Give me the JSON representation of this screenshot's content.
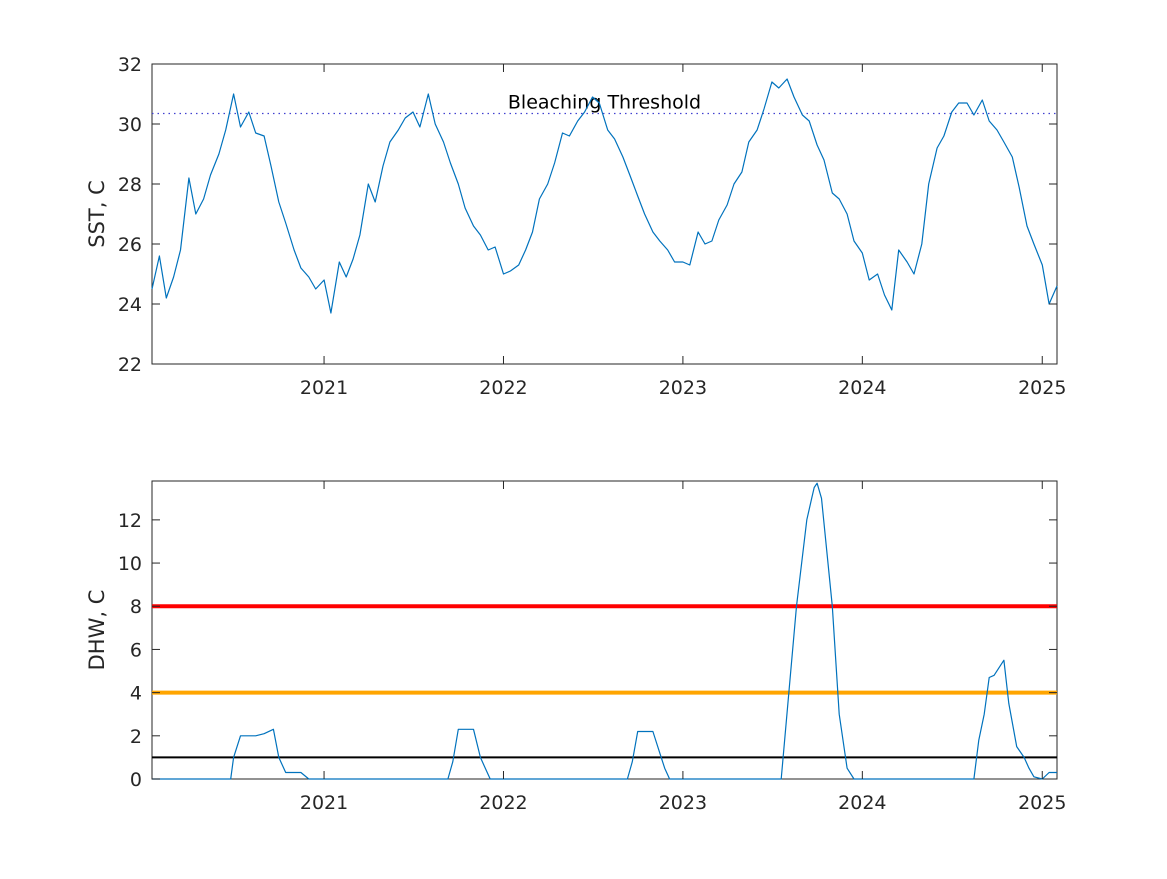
{
  "chart_data": [
    {
      "type": "line",
      "xlabel": "",
      "ylabel": "SST, C",
      "ylim": [
        22,
        32
      ],
      "xlim": [
        "2020-01-17",
        "2025-01-31"
      ],
      "yticks": [
        "22",
        "24",
        "26",
        "28",
        "30",
        "32"
      ],
      "xticks": [
        {
          "date": "2021-01-01",
          "label": "2021"
        },
        {
          "date": "2022-01-01",
          "label": "2022"
        },
        {
          "date": "2023-01-01",
          "label": "2023"
        },
        {
          "date": "2024-01-01",
          "label": "2024"
        },
        {
          "date": "2025-01-01",
          "label": "2025"
        }
      ],
      "grid": false,
      "series": [
        {
          "color": "#0072BD",
          "x": [
            "2020-01-17",
            "2020-02-01",
            "2020-02-15",
            "2020-03-01",
            "2020-03-15",
            "2020-04-01",
            "2020-04-15",
            "2020-05-01",
            "2020-05-15",
            "2020-06-01",
            "2020-06-15",
            "2020-07-01",
            "2020-07-15",
            "2020-08-01",
            "2020-08-15",
            "2020-09-01",
            "2020-09-15",
            "2020-10-01",
            "2020-10-15",
            "2020-11-01",
            "2020-11-15",
            "2020-12-01",
            "2020-12-15",
            "2021-01-01",
            "2021-01-15",
            "2021-02-01",
            "2021-02-15",
            "2021-03-01",
            "2021-03-15",
            "2021-04-01",
            "2021-04-15",
            "2021-05-01",
            "2021-05-15",
            "2021-06-01",
            "2021-06-15",
            "2021-07-01",
            "2021-07-15",
            "2021-08-01",
            "2021-08-15",
            "2021-09-01",
            "2021-09-15",
            "2021-10-01",
            "2021-10-15",
            "2021-11-01",
            "2021-11-15",
            "2021-12-01",
            "2021-12-15",
            "2022-01-01",
            "2022-01-15",
            "2022-02-01",
            "2022-02-15",
            "2022-03-01",
            "2022-03-15",
            "2022-04-01",
            "2022-04-15",
            "2022-05-01",
            "2022-05-15",
            "2022-06-01",
            "2022-06-15",
            "2022-07-01",
            "2022-07-15",
            "2022-08-01",
            "2022-08-15",
            "2022-09-01",
            "2022-09-15",
            "2022-10-01",
            "2022-10-15",
            "2022-11-01",
            "2022-11-15",
            "2022-12-01",
            "2022-12-15",
            "2023-01-01",
            "2023-01-15",
            "2023-02-01",
            "2023-02-15",
            "2023-03-01",
            "2023-03-15",
            "2023-04-01",
            "2023-04-15",
            "2023-05-01",
            "2023-05-15",
            "2023-06-01",
            "2023-06-15",
            "2023-07-01",
            "2023-07-15",
            "2023-08-01",
            "2023-08-15",
            "2023-09-01",
            "2023-09-15",
            "2023-10-01",
            "2023-10-15",
            "2023-11-01",
            "2023-11-15",
            "2023-12-01",
            "2023-12-15",
            "2024-01-01",
            "2024-01-15",
            "2024-02-01",
            "2024-02-15",
            "2024-03-01",
            "2024-03-15",
            "2024-04-01",
            "2024-04-15",
            "2024-05-01",
            "2024-05-15",
            "2024-06-01",
            "2024-06-15",
            "2024-07-01",
            "2024-07-15",
            "2024-08-01",
            "2024-08-15",
            "2024-09-01",
            "2024-09-15",
            "2024-10-01",
            "2024-10-15",
            "2024-11-01",
            "2024-11-15",
            "2024-12-01",
            "2024-12-15",
            "2025-01-01",
            "2025-01-15",
            "2025-01-31"
          ],
          "y": [
            24.5,
            25.6,
            24.2,
            24.9,
            25.8,
            28.2,
            27.0,
            27.5,
            28.3,
            29.0,
            29.8,
            31.0,
            29.9,
            30.4,
            29.7,
            29.6,
            28.6,
            27.4,
            26.7,
            25.8,
            25.2,
            24.9,
            24.5,
            24.8,
            23.7,
            25.4,
            24.9,
            25.5,
            26.3,
            28.0,
            27.4,
            28.6,
            29.4,
            29.8,
            30.2,
            30.4,
            29.9,
            31.0,
            30.0,
            29.4,
            28.7,
            28.0,
            27.2,
            26.6,
            26.3,
            25.8,
            25.9,
            25.0,
            25.1,
            25.3,
            25.8,
            26.4,
            27.5,
            28.0,
            28.7,
            29.7,
            29.6,
            30.1,
            30.4,
            30.9,
            30.7,
            29.8,
            29.5,
            28.9,
            28.3,
            27.6,
            27.0,
            26.4,
            26.1,
            25.8,
            25.4,
            25.4,
            25.3,
            26.4,
            26.0,
            26.1,
            26.8,
            27.3,
            28.0,
            28.4,
            29.4,
            29.8,
            30.5,
            31.4,
            31.2,
            31.5,
            30.9,
            30.3,
            30.1,
            29.3,
            28.8,
            27.7,
            27.5,
            27.0,
            26.1,
            25.7,
            24.8,
            25.0,
            24.3,
            23.8,
            25.8,
            25.4,
            25.0,
            26.0,
            28.0,
            29.2,
            29.6,
            30.4,
            30.7,
            30.7,
            30.3,
            30.8,
            30.1,
            29.8,
            29.4,
            28.9,
            27.9,
            26.6,
            26.0,
            25.3,
            24.0,
            24.6
          ]
        }
      ],
      "annotations": [
        {
          "text": "Bleaching Threshold",
          "y": 30.35,
          "line_style": "dotted",
          "line_color": "#4040D0"
        }
      ]
    },
    {
      "type": "line",
      "xlabel": "",
      "ylabel": "DHW, C",
      "ylim": [
        0,
        13.8
      ],
      "xlim": [
        "2020-01-17",
        "2025-01-31"
      ],
      "yticks": [
        "0",
        "2",
        "4",
        "6",
        "8",
        "10",
        "12"
      ],
      "xticks": [
        {
          "date": "2021-01-01",
          "label": "2021"
        },
        {
          "date": "2022-01-01",
          "label": "2022"
        },
        {
          "date": "2023-01-01",
          "label": "2023"
        },
        {
          "date": "2024-01-01",
          "label": "2024"
        },
        {
          "date": "2025-01-01",
          "label": "2025"
        }
      ],
      "grid": false,
      "series": [
        {
          "color": "#0072BD",
          "x": [
            "2020-01-17",
            "2020-06-25",
            "2020-07-01",
            "2020-07-15",
            "2020-08-15",
            "2020-09-01",
            "2020-09-20",
            "2020-10-01",
            "2020-10-15",
            "2020-11-15",
            "2020-12-01",
            "2021-09-10",
            "2021-09-20",
            "2021-10-01",
            "2021-11-01",
            "2021-11-15",
            "2021-11-25",
            "2021-12-05",
            "2022-09-10",
            "2022-09-20",
            "2022-10-01",
            "2022-11-01",
            "2022-11-15",
            "2022-11-25",
            "2022-12-05",
            "2023-07-20",
            "2023-08-20",
            "2023-09-10",
            "2023-09-20",
            "2023-09-25",
            "2023-10-01",
            "2023-10-10",
            "2023-11-01",
            "2023-11-15",
            "2023-12-01",
            "2023-12-15",
            "2024-08-15",
            "2024-08-25",
            "2024-09-05",
            "2024-09-15",
            "2024-09-25",
            "2024-10-15",
            "2024-10-25",
            "2024-11-10",
            "2024-11-25",
            "2024-12-05",
            "2024-12-15",
            "2025-01-01",
            "2025-01-15",
            "2025-01-31"
          ],
          "y": [
            0,
            0,
            1.0,
            2.0,
            2.0,
            2.1,
            2.3,
            1.0,
            0.3,
            0.3,
            0,
            0,
            0.8,
            2.3,
            2.3,
            1.0,
            0.5,
            0,
            0,
            0.8,
            2.2,
            2.2,
            1.2,
            0.5,
            0,
            0,
            8.0,
            12.0,
            13.0,
            13.5,
            13.7,
            13.0,
            8.0,
            3.0,
            0.5,
            0,
            0,
            1.8,
            3.0,
            4.7,
            4.8,
            5.5,
            3.5,
            1.5,
            1.0,
            0.5,
            0.1,
            0,
            0.3,
            0.3
          ]
        }
      ],
      "reference_lines": [
        {
          "y": 8,
          "color": "#FF0000"
        },
        {
          "y": 4,
          "color": "#FFA500"
        },
        {
          "y": 1,
          "color": "#000000"
        }
      ]
    }
  ]
}
